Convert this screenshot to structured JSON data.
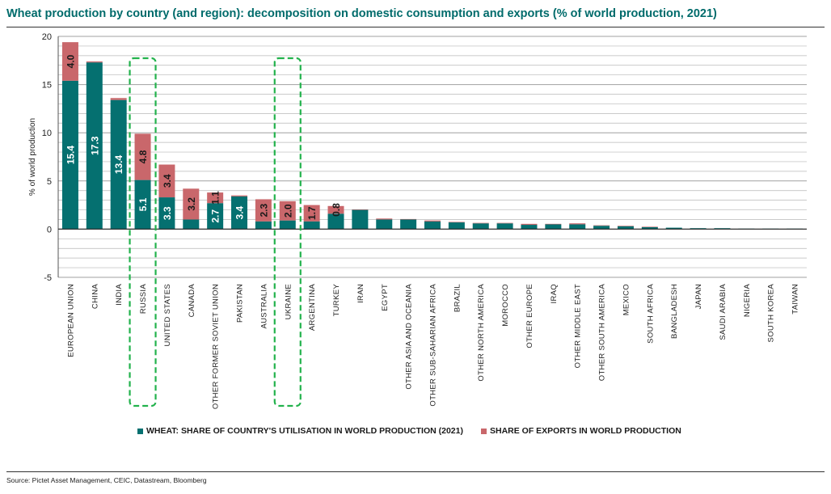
{
  "title": "Wheat production by country (and region): decomposition on domestic consumption and exports (% of world production, 2021)",
  "source": "Source: Pictet Asset Management, CEIC, Datastream, Bloomberg",
  "colors": {
    "consumption": "#057070",
    "exports": "#c9676b",
    "highlight": "#22b24c",
    "title": "#006b6b"
  },
  "legend": [
    {
      "label": "WHEAT: SHARE OF COUNTRY'S UTILISATION IN WORLD PRODUCTION (2021)",
      "color": "#057070"
    },
    {
      "label": "SHARE OF EXPORTS IN WORLD PRODUCTION",
      "color": "#c9676b"
    }
  ],
  "chart_data": {
    "type": "bar",
    "stacked": true,
    "ylabel": "% of world production",
    "ylim": [
      -5,
      20
    ],
    "yticks": [
      -5,
      0,
      5,
      10,
      15,
      20
    ],
    "grid": true,
    "legend_position": "bottom",
    "categories": [
      "EUROPEAN UNION",
      "CHINA",
      "INDIA",
      "RUSSIA",
      "UNITED STATES",
      "CANADA",
      "OTHER FORMER SOVIET UNION",
      "PAKISTAN",
      "AUSTRALIA",
      "UKRAINE",
      "ARGENTINA",
      "TURKEY",
      "IRAN",
      "EGYPT",
      "OTHER ASIA AND OCEANIA",
      "OTHER SUB-SAHARIAN AFRICA",
      "BRAZIL",
      "OTHER NORTH AMERICA",
      "MOROCCO",
      "OTHER EUROPE",
      "IRAQ",
      "OTHER MIDDLE EAST",
      "OTHER SOUTH AMERICA",
      "MEXICO",
      "SOUTH AFRICA",
      "BANGLADESH",
      "JAPAN",
      "SAUDI ARABIA",
      "NIGERIA",
      "SOUTH KOREA",
      "TAIWAN"
    ],
    "series": [
      {
        "name": "WHEAT: SHARE OF COUNTRY'S UTILISATION IN WORLD PRODUCTION (2021)",
        "values": [
          15.4,
          17.3,
          13.4,
          5.1,
          3.3,
          1.0,
          2.7,
          3.4,
          0.8,
          0.9,
          0.8,
          1.6,
          2.0,
          1.0,
          1.0,
          0.8,
          0.7,
          0.6,
          0.6,
          0.45,
          0.5,
          0.5,
          0.35,
          0.3,
          0.2,
          0.15,
          0.1,
          0.1,
          0.05,
          0.05,
          0.05
        ],
        "labels": [
          "15.4",
          "17.3",
          "13.4",
          "5.1",
          "3.3",
          "",
          "2.7",
          "3.4",
          "",
          "",
          "",
          "",
          "",
          "",
          "",
          "",
          "",
          "",
          "",
          "",
          "",
          "",
          "",
          "",
          "",
          "",
          "",
          "",
          "",
          "",
          ""
        ]
      },
      {
        "name": "SHARE OF EXPORTS IN WORLD PRODUCTION",
        "values": [
          4.0,
          0.1,
          0.2,
          4.8,
          3.4,
          3.2,
          1.1,
          0.1,
          2.3,
          2.0,
          1.7,
          0.8,
          0.05,
          0.1,
          0.05,
          0.1,
          0.05,
          0.05,
          0.05,
          0.1,
          0.05,
          0.1,
          0.05,
          0.05,
          0.05,
          0.0,
          0.0,
          0.0,
          0.0,
          0.0,
          0.0
        ],
        "labels": [
          "4.0",
          "",
          "",
          "4.8",
          "3.4",
          "3.2",
          "1.1",
          "",
          "2.3",
          "2.0",
          "1.7",
          "0.8",
          "",
          "",
          "",
          "",
          "",
          "",
          "",
          "",
          "",
          "",
          "",
          "",
          "",
          "",
          "",
          "",
          "",
          "",
          ""
        ]
      }
    ],
    "highlighted": [
      "RUSSIA",
      "UKRAINE"
    ]
  }
}
